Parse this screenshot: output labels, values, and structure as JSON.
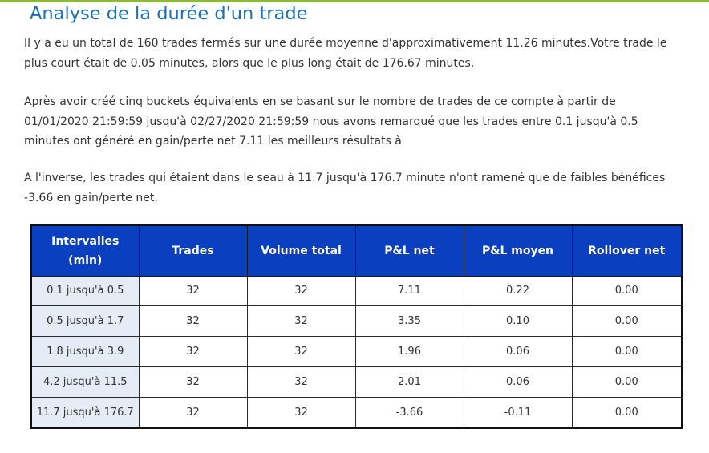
{
  "heading": "Analyse de la durée d'un trade",
  "paragraphs": [
    "Il y a eu un total de 160 trades fermés sur une durée moyenne d'approximativement 11.26 minutes.Votre trade le plus court était de 0.05 minutes, alors que le plus long était de 176.67 minutes.",
    "Après avoir créé cinq buckets équivalents en se basant sur le nombre de trades de ce compte à partir de 01/01/2020 21:59:59 jusqu'à 02/27/2020 21:59:59 nous avons remarqué que les trades entre 0.1 jusqu'à 0.5 minutes ont généré en gain/perte net 7.11 les meilleurs résultats à",
    "A l'inverse, les trades qui étaient dans le seau à 11.7 jusqu'à 176.7 minute n'ont ramené que de faibles bénéfices -3.66 en gain/perte net."
  ],
  "table": {
    "headers": [
      "Intervalles (min)",
      "Trades",
      "Volume total",
      "P&L net",
      "P&L moyen",
      "Rollover net"
    ],
    "rows": [
      [
        "0.1 jusqu'à 0.5",
        "32",
        "32",
        "7.11",
        "0.22",
        "0.00"
      ],
      [
        "0.5 jusqu'à 1.7",
        "32",
        "32",
        "3.35",
        "0.10",
        "0.00"
      ],
      [
        "1.8 jusqu'à 3.9",
        "32",
        "32",
        "1.96",
        "0.06",
        "0.00"
      ],
      [
        "4.2 jusqu'à 11.5",
        "32",
        "32",
        "2.01",
        "0.06",
        "0.00"
      ],
      [
        "11.7 jusqu'à 176.7",
        "32",
        "32",
        "-3.66",
        "-0.11",
        "0.00"
      ]
    ]
  },
  "colors": {
    "heading": "#1b6fb8",
    "header_bg": "#0a3fbf",
    "range_cell_bg": "#e6ecf6",
    "top_rule": "#8cb83c"
  }
}
